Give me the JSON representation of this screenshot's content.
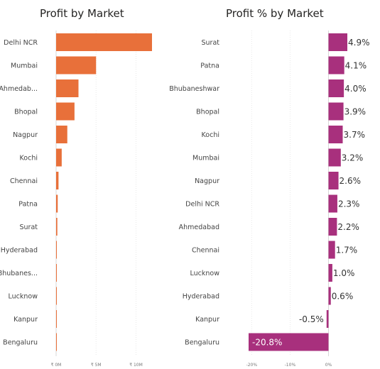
{
  "chart_data": [
    {
      "type": "bar",
      "orientation": "horizontal",
      "title": "Profit by Market",
      "categories": [
        "Delhi NCR",
        "Mumbai",
        "Ahmedab...",
        "Bhopal",
        "Nagpur",
        "Kochi",
        "Chennai",
        "Patna",
        "Surat",
        "Hyderabad",
        "Bhubanes...",
        "Lucknow",
        "Kanpur",
        "Bengaluru"
      ],
      "values": [
        12000000,
        5000000,
        2800000,
        2300000,
        1400000,
        700000,
        300000,
        200000,
        150000,
        80000,
        60000,
        50000,
        40000,
        30000
      ],
      "xlim": [
        0,
        12000000
      ],
      "xticks": [
        {
          "value": 0,
          "label": "₹ 0M"
        },
        {
          "value": 5000000,
          "label": "₹ 5M"
        },
        {
          "value": 10000000,
          "label": "₹ 10M"
        }
      ],
      "color": "#E8703A",
      "grid": true
    },
    {
      "type": "bar",
      "orientation": "horizontal",
      "title": "Profit % by Market",
      "categories": [
        "Surat",
        "Patna",
        "Bhubaneshwar",
        "Bhopal",
        "Kochi",
        "Mumbai",
        "Nagpur",
        "Delhi NCR",
        "Ahmedabad",
        "Chennai",
        "Lucknow",
        "Hyderabad",
        "Kanpur",
        "Bengaluru"
      ],
      "values": [
        4.9,
        4.1,
        4.0,
        3.9,
        3.7,
        3.2,
        2.6,
        2.3,
        2.2,
        1.7,
        1.0,
        0.6,
        -0.5,
        -20.8
      ],
      "labels": [
        "4.9%",
        "4.1%",
        "4.0%",
        "3.9%",
        "3.7%",
        "3.2%",
        "2.6%",
        "2.3%",
        "2.2%",
        "1.7%",
        "1.0%",
        "0.6%",
        "-0.5%",
        "-20.8%"
      ],
      "xlim": [
        -20.8,
        4.9
      ],
      "xticks": [
        {
          "value": -20,
          "label": "-20%"
        },
        {
          "value": -10,
          "label": "-10%"
        },
        {
          "value": 0,
          "label": "0%"
        }
      ],
      "color": "#A8307D",
      "grid": true
    }
  ]
}
